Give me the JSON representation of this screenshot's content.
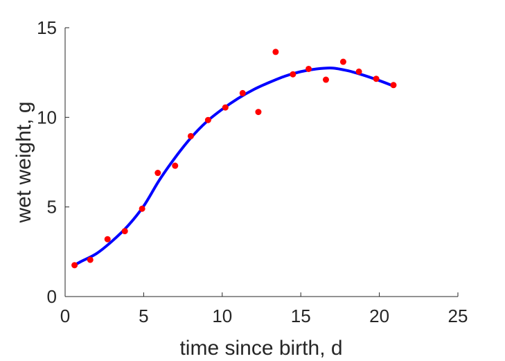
{
  "chart_data": {
    "type": "scatter",
    "xlabel": "time since birth, d",
    "ylabel": "wet weight, g",
    "xlim": [
      0,
      25
    ],
    "ylim": [
      0,
      15
    ],
    "xticks": [
      "0",
      "5",
      "10",
      "15",
      "20",
      "25"
    ],
    "yticks": [
      "0",
      "5",
      "10",
      "15"
    ],
    "grid": false,
    "series": [
      {
        "kind": "points",
        "color": "#ff0000",
        "x": [
          0.6,
          1.6,
          2.7,
          3.8,
          4.9,
          5.9,
          7.0,
          8.0,
          9.1,
          10.2,
          11.3,
          12.3,
          13.4,
          14.5,
          15.5,
          16.6,
          17.7,
          18.7,
          19.8,
          20.9
        ],
        "y": [
          1.75,
          2.05,
          3.2,
          3.65,
          4.9,
          6.9,
          7.3,
          8.95,
          9.85,
          10.55,
          11.35,
          10.3,
          13.65,
          12.4,
          12.7,
          12.1,
          13.1,
          12.55,
          12.15,
          11.8
        ]
      },
      {
        "kind": "fit-line",
        "color": "#0000ff",
        "x": [
          0.6,
          1.0,
          2.0,
          3.0,
          4.0,
          5.0,
          6.0,
          7.0,
          8.0,
          9.0,
          10.0,
          11.0,
          12.0,
          13.0,
          14.0,
          15.0,
          16.0,
          17.0,
          18.0,
          19.0,
          20.0,
          20.9
        ],
        "y": [
          1.75,
          1.95,
          2.4,
          3.1,
          3.95,
          5.05,
          6.5,
          7.75,
          8.85,
          9.75,
          10.45,
          11.05,
          11.55,
          11.95,
          12.3,
          12.55,
          12.7,
          12.75,
          12.6,
          12.35,
          12.05,
          11.75
        ]
      }
    ]
  }
}
